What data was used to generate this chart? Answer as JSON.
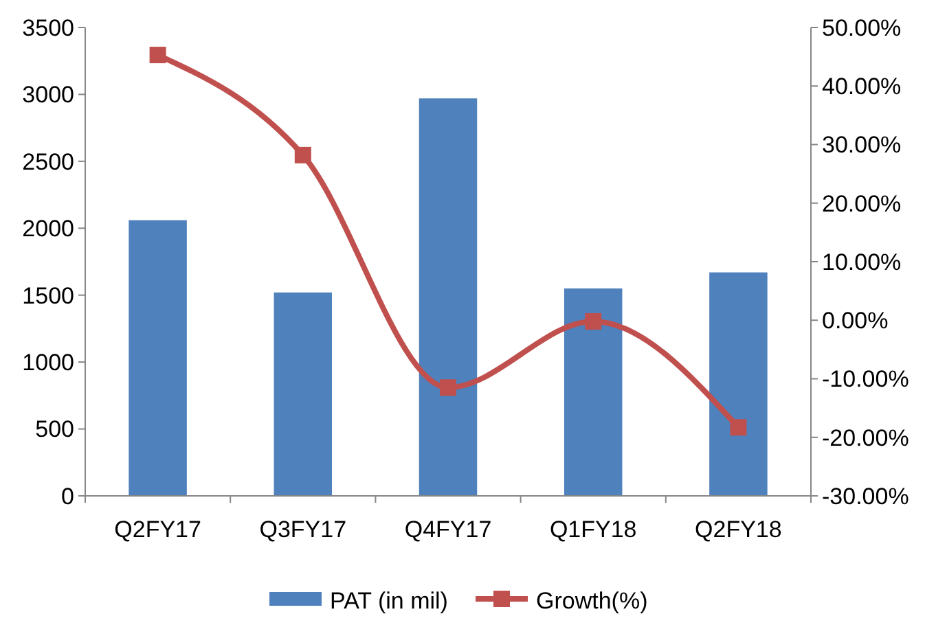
{
  "chart_data": {
    "type": "bar",
    "categories": [
      "Q2FY17",
      "Q3FY17",
      "Q4FY17",
      "Q1FY18",
      "Q2FY18"
    ],
    "series": [
      {
        "name": "PAT (in mil)",
        "color": "#4f81bd",
        "values": [
          2060,
          1520,
          2970,
          1550,
          1670
        ]
      },
      {
        "name": "Growth(%)",
        "type": "line",
        "axis": "y2",
        "color": "#c0504d",
        "values": [
          45.3,
          28.2,
          -11.5,
          -0.2,
          -18.3
        ]
      }
    ],
    "ylim": [
      0,
      3500
    ],
    "yticks": [
      0,
      500,
      1000,
      1500,
      2000,
      2500,
      3000,
      3500
    ],
    "y2lim": [
      -30,
      50
    ],
    "y2ticks": [
      {
        "value": -30,
        "label": "-30.00%"
      },
      {
        "value": -20,
        "label": "-20.00%"
      },
      {
        "value": -10,
        "label": "-10.00%"
      },
      {
        "value": 0,
        "label": "0.00%"
      },
      {
        "value": 10,
        "label": "10.00%"
      },
      {
        "value": 20,
        "label": "20.00%"
      },
      {
        "value": 30,
        "label": "30.00%"
      },
      {
        "value": 40,
        "label": "40.00%"
      },
      {
        "value": 50,
        "label": "50.00%"
      }
    ],
    "legend": "bottom",
    "marker": "square",
    "grid": false
  }
}
